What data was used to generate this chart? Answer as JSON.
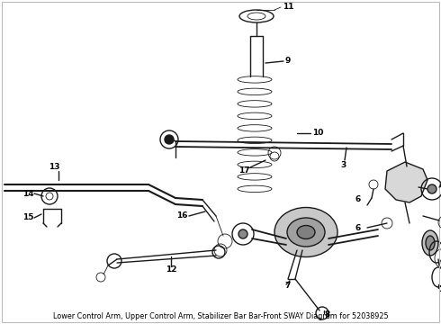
{
  "bg_color": "#ffffff",
  "text_color": "#000000",
  "subtitle": "Lower Control Arm, Upper Control Arm, Stabilizer Bar Bar-Front SWAY Diagram for 52038925",
  "subtitle_fontsize": 5.8,
  "fig_width": 4.9,
  "fig_height": 3.6,
  "dpi": 100,
  "line_color": "#1a1a1a",
  "lw_main": 1.0,
  "lw_thin": 0.6,
  "lw_thick": 1.5,
  "label_fontsize": 6.5,
  "label_color": "#000000"
}
